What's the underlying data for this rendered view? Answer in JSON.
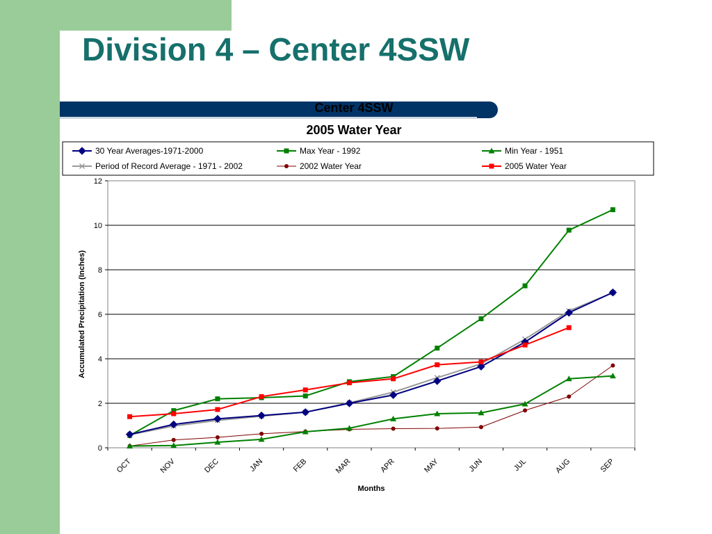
{
  "slide": {
    "title": "Division 4 – Center 4SSW",
    "colors": {
      "title": "#16706b",
      "accent_green": "#99cc99",
      "bar_blue": "#003366"
    }
  },
  "chart_data": {
    "type": "line",
    "title": "Center 4SSW",
    "subtitle": "2005 Water Year",
    "xlabel": "Months",
    "ylabel": "Accumulated Precipitation (Inches)",
    "ylim": [
      0,
      12
    ],
    "yticks": [
      0,
      2,
      4,
      6,
      8,
      10,
      12
    ],
    "grid": true,
    "legend_position": "top",
    "categories": [
      "OCT",
      "NOV",
      "DEC",
      "JAN",
      "FEB",
      "MAR",
      "APR",
      "MAY",
      "JUN",
      "JUL",
      "AUG",
      "SEP"
    ],
    "series": [
      {
        "name": "30 Year Averages-1971-2000",
        "color": "#000080",
        "marker": "diamond",
        "values": [
          0.6,
          1.05,
          1.3,
          1.45,
          1.6,
          2.0,
          2.37,
          3.0,
          3.65,
          4.75,
          6.07,
          6.98
        ]
      },
      {
        "name": "Max Year - 1992",
        "color": "#008000",
        "marker": "square",
        "values": [
          0.55,
          1.67,
          2.2,
          2.25,
          2.33,
          2.97,
          3.2,
          4.48,
          5.8,
          7.28,
          9.78,
          10.7
        ]
      },
      {
        "name": "Min Year - 1951",
        "color": "#008000",
        "marker": "triangle",
        "values": [
          0.08,
          0.1,
          0.25,
          0.38,
          0.72,
          0.88,
          1.3,
          1.53,
          1.57,
          1.97,
          3.1,
          3.23
        ]
      },
      {
        "name": "Period of Record Average - 1971 - 2002",
        "color": "#999999",
        "marker": "x",
        "values": [
          0.58,
          0.98,
          1.23,
          1.42,
          1.6,
          2.02,
          2.5,
          3.15,
          3.77,
          4.88,
          6.15,
          6.97
        ]
      },
      {
        "name": "2002 Water Year",
        "color": "#800000",
        "marker": "circle",
        "values": [
          0.08,
          0.35,
          0.47,
          0.63,
          0.73,
          0.83,
          0.86,
          0.87,
          0.93,
          1.68,
          2.3,
          3.7
        ]
      },
      {
        "name": "2005 Water Year",
        "color": "#ff0000",
        "marker": "square",
        "values": [
          1.4,
          1.53,
          1.72,
          2.3,
          2.6,
          2.92,
          3.1,
          3.73,
          3.86,
          4.62,
          5.4,
          null
        ]
      }
    ]
  }
}
